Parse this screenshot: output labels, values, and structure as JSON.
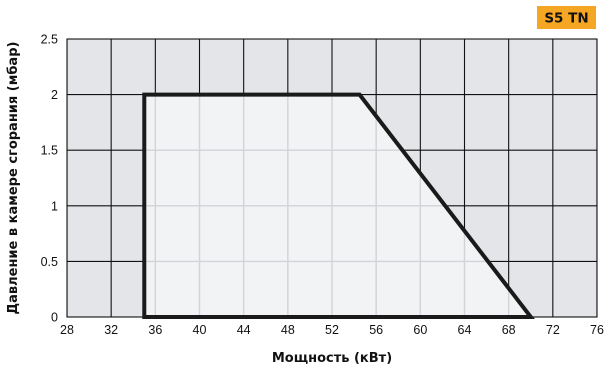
{
  "badge": {
    "label": "S5 TN",
    "color": "#f5a623"
  },
  "chart_data": {
    "type": "area",
    "title": "",
    "xlabel": "Мощность (кВт)",
    "ylabel": "Давление в камере сгорания (мбар)",
    "xlim": [
      28,
      76
    ],
    "ylim": [
      0,
      2.5
    ],
    "x_ticks": [
      28,
      32,
      36,
      40,
      44,
      48,
      52,
      56,
      60,
      64,
      68,
      72,
      76
    ],
    "y_ticks": [
      0,
      0.5,
      1,
      1.5,
      2,
      2.5
    ],
    "y_tick_labels": [
      "0",
      "0.5",
      "1",
      "1.5",
      "2",
      "2.5"
    ],
    "grid": true,
    "legend": "none",
    "series": [
      {
        "x": [
          35,
          35,
          54.5,
          70,
          35
        ],
        "y": [
          0,
          2,
          2,
          0,
          0
        ]
      }
    ],
    "colors": {
      "outside_area": "#e3e5e8",
      "inside_area": "#f2f3f5",
      "grid": "#111111",
      "inner_grid": "#d0d3d8",
      "outline": "#1a1a1a"
    }
  }
}
